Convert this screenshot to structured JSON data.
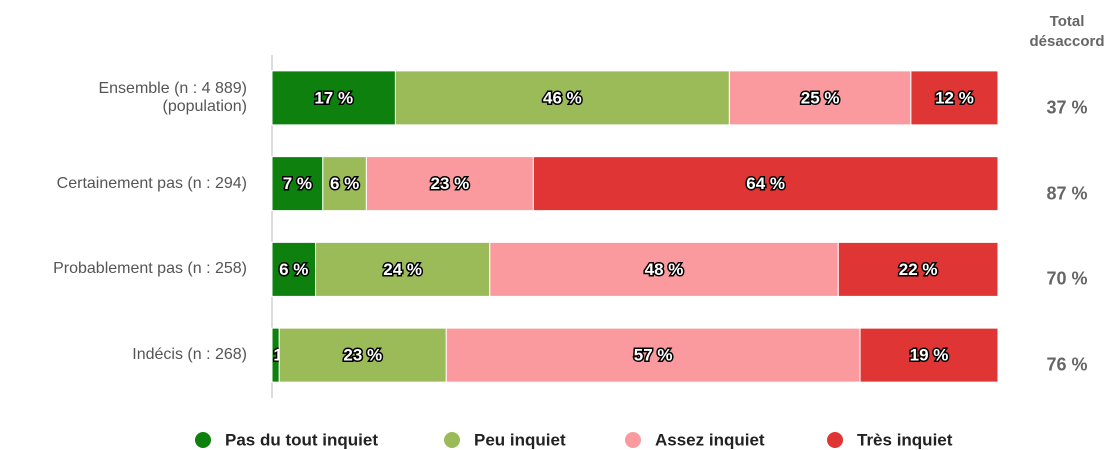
{
  "chart_data": {
    "type": "stacked_bar_horizontal",
    "categories": [
      "Ensemble (n : 4 889)\n(population)",
      "Certainement pas (n : 294)",
      "Probablement pas (n : 258)",
      "Indécis (n : 268)"
    ],
    "series": [
      {
        "name": "Pas du tout inquiet",
        "color": "#0d800d",
        "values": [
          17,
          7,
          6,
          1
        ],
        "value_labels": [
          "17 %",
          "7 %",
          "6 %",
          "1 %"
        ]
      },
      {
        "name": "Peu inquiet",
        "color": "#9bbb59",
        "values": [
          46,
          6,
          24,
          23
        ],
        "value_labels": [
          "46 %",
          "6 %",
          "24 %",
          "23 %"
        ]
      },
      {
        "name": "Assez inquiet",
        "color": "#fb9a9e",
        "values": [
          25,
          23,
          48,
          57
        ],
        "value_labels": [
          "25 %",
          "23 %",
          "48 %",
          "57 %"
        ]
      },
      {
        "name": "Très inquiet",
        "color": "#e03535",
        "values": [
          12,
          64,
          22,
          19
        ],
        "value_labels": [
          "12 %",
          "64 %",
          "22 %",
          "19 %"
        ]
      }
    ],
    "xlim": [
      0,
      100
    ],
    "totals": {
      "title": "Total\ndésaccord",
      "values": [
        37,
        87,
        70,
        76
      ],
      "value_labels": [
        "37 %",
        "87 %",
        "70 %",
        "76 %"
      ]
    },
    "legend": "bottom"
  }
}
